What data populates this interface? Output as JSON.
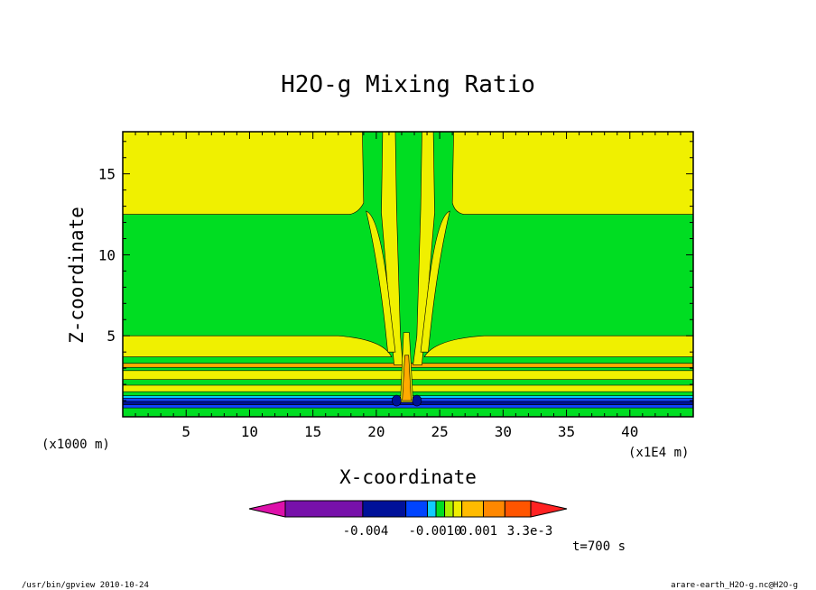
{
  "chart_data": {
    "type": "heatmap",
    "title": "H2O-g Mixing Ratio",
    "xlabel": "X-coordinate",
    "ylabel": "Z-coordinate",
    "x_unit": "(x1E4 m)",
    "y_unit": "(x1000 m)",
    "xlim": [
      0,
      45
    ],
    "ylim": [
      0,
      17.6
    ],
    "xticks": [
      "5",
      "10",
      "15",
      "20",
      "25",
      "30",
      "35",
      "40"
    ],
    "xtick_values": [
      5,
      10,
      15,
      20,
      25,
      30,
      35,
      40
    ],
    "yticks": [
      "5",
      "10",
      "15"
    ],
    "ytick_values": [
      5,
      10,
      15
    ],
    "time_label": "t=700 s",
    "colorbar": {
      "labels": [
        "-0.004",
        "-0.0010",
        "0.001",
        "3.3e-3"
      ],
      "colors": [
        "#dd11aa",
        "#7711aa",
        "#001199",
        "#0044ff",
        "#11ccff",
        "#00dd22",
        "#aaee00",
        "#eeee00",
        "#ffbb00",
        "#ff8800",
        "#ff5500",
        "#ff2222"
      ]
    },
    "colors": {
      "green": "#00dd22",
      "yellow": "#f0f000",
      "orange": "#ffaa00",
      "blue": "#1144ff",
      "navy": "#001199",
      "cyan": "#00ccff"
    }
  },
  "footer": {
    "left": "/usr/bin/gpview   2010-10-24",
    "right": "arare-earth_H2O-g.nc@H2O-g"
  }
}
